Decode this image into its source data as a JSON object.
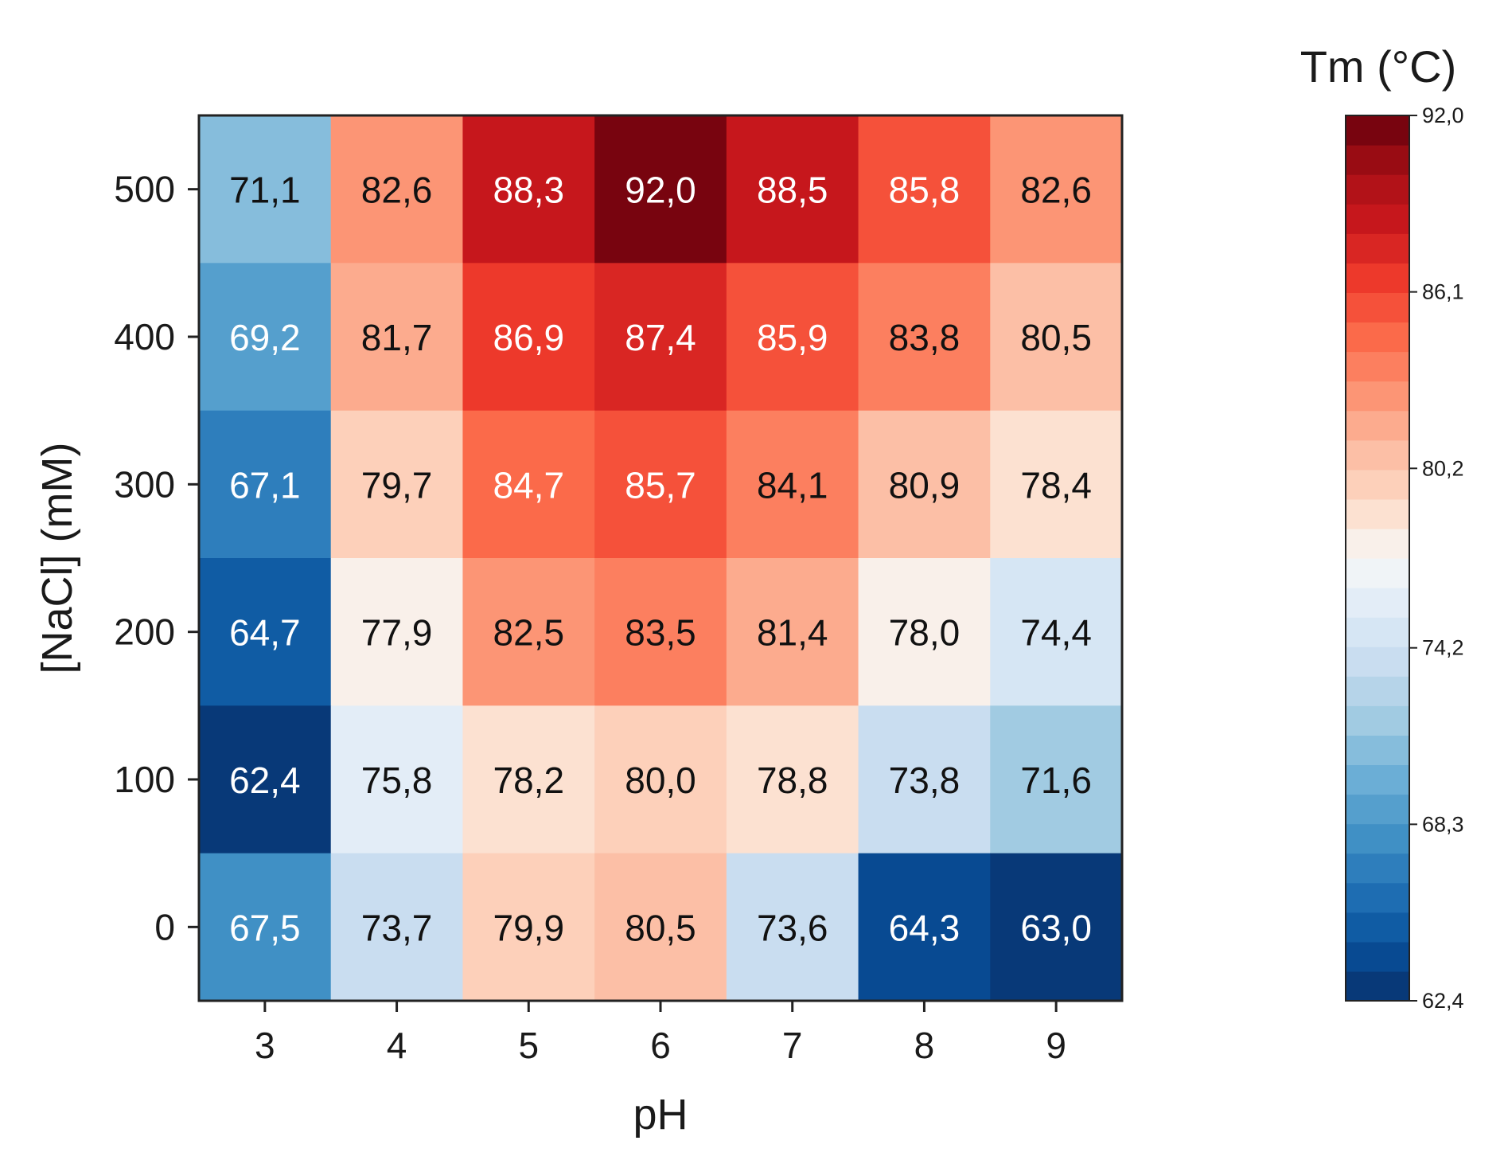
{
  "chart_data": {
    "type": "heatmap",
    "title": "",
    "xlabel": "pH",
    "ylabel": "[NaCl] (mM)",
    "x": [
      "3",
      "4",
      "5",
      "6",
      "7",
      "8",
      "9"
    ],
    "y": [
      "500",
      "400",
      "300",
      "200",
      "100",
      "0"
    ],
    "values": [
      [
        71.1,
        82.6,
        88.3,
        92.0,
        88.5,
        85.8,
        82.6
      ],
      [
        69.2,
        81.7,
        86.9,
        87.4,
        85.9,
        83.8,
        80.5
      ],
      [
        67.1,
        79.7,
        84.7,
        85.7,
        84.1,
        80.9,
        78.4
      ],
      [
        64.7,
        77.9,
        82.5,
        83.5,
        81.4,
        78.0,
        74.4
      ],
      [
        62.4,
        75.8,
        78.2,
        80.0,
        78.8,
        73.8,
        71.6
      ],
      [
        67.5,
        73.7,
        79.9,
        80.5,
        73.6,
        64.3,
        63.0
      ]
    ],
    "cell_labels": [
      [
        "71,1",
        "82,6",
        "88,3",
        "92,0",
        "88,5",
        "85,8",
        "82,6"
      ],
      [
        "69,2",
        "81,7",
        "86,9",
        "87,4",
        "85,9",
        "83,8",
        "80,5"
      ],
      [
        "67,1",
        "79,7",
        "84,7",
        "85,7",
        "84,1",
        "80,9",
        "78,4"
      ],
      [
        "64,7",
        "77,9",
        "82,5",
        "83,5",
        "81,4",
        "78,0",
        "74,4"
      ],
      [
        "62,4",
        "75,8",
        "78,2",
        "80,0",
        "78,8",
        "73,8",
        "71,6"
      ],
      [
        "67,5",
        "73,7",
        "79,9",
        "80,5",
        "73,6",
        "64,3",
        "63,0"
      ]
    ],
    "colorbar": {
      "title": "Tm (°C)",
      "min": 62.4,
      "max": 92.0,
      "steps": 30,
      "ticks": [
        62.4,
        68.3,
        74.2,
        80.2,
        86.1,
        92.0
      ],
      "tick_labels": [
        "62,4",
        "68,3",
        "74,2",
        "80,2",
        "86,1",
        "92,0"
      ],
      "colormap": "RdBu_r",
      "stops": [
        "#08306b",
        "#08519c",
        "#2171b5",
        "#4292c6",
        "#6baed6",
        "#9ecae1",
        "#c6dbef",
        "#deebf7",
        "#f7f7f7",
        "#fddbc7",
        "#fcbba1",
        "#fc9272",
        "#fb6a4a",
        "#ef3b2c",
        "#cb181d",
        "#a50f15",
        "#67000d"
      ]
    },
    "grid": false
  }
}
